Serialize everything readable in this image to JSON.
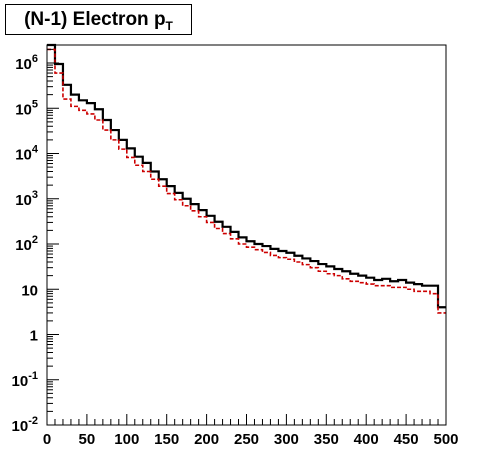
{
  "chart_data": {
    "type": "line",
    "title": "(N-1) Electron p",
    "title_subscript": "T",
    "xlabel": "",
    "ylabel": "",
    "xlim": [
      0,
      500
    ],
    "ylim": [
      0.01,
      2500000
    ],
    "yscale": "log",
    "grid": false,
    "x_ticks": [
      0,
      50,
      100,
      150,
      200,
      250,
      300,
      350,
      400,
      450,
      500
    ],
    "y_ticks": [
      {
        "value": 0.01,
        "base": "10",
        "exp": "-2"
      },
      {
        "value": 0.1,
        "base": "10",
        "exp": "-1"
      },
      {
        "value": 1,
        "base": "1",
        "exp": ""
      },
      {
        "value": 10,
        "base": "10",
        "exp": ""
      },
      {
        "value": 100,
        "base": "10",
        "exp": "2"
      },
      {
        "value": 1000,
        "base": "10",
        "exp": "3"
      },
      {
        "value": 10000,
        "base": "10",
        "exp": "4"
      },
      {
        "value": 100000,
        "base": "10",
        "exp": "5"
      },
      {
        "value": 1000000,
        "base": "10",
        "exp": "6"
      }
    ],
    "bin_edges": [
      0,
      10,
      20,
      30,
      40,
      50,
      60,
      70,
      80,
      90,
      100,
      110,
      120,
      130,
      140,
      150,
      160,
      170,
      180,
      190,
      200,
      210,
      220,
      230,
      240,
      250,
      260,
      270,
      280,
      290,
      300,
      310,
      320,
      330,
      340,
      350,
      360,
      370,
      380,
      390,
      400,
      410,
      420,
      430,
      440,
      450,
      460,
      470,
      480,
      490,
      500
    ],
    "series": [
      {
        "color": "#000000",
        "style": "solid",
        "values": [
          2500000,
          950000,
          330000,
          200000,
          150000,
          130000,
          95000,
          55000,
          33000,
          20000,
          13000,
          8500,
          6200,
          4000,
          2700,
          1900,
          1350,
          1000,
          760,
          560,
          420,
          310,
          240,
          185,
          140,
          115,
          100,
          90,
          78,
          70,
          64,
          55,
          48,
          42,
          36,
          32,
          28,
          25,
          22,
          20,
          18,
          16,
          17,
          15,
          16,
          14,
          13,
          12,
          12,
          4
        ]
      },
      {
        "color": "#cc0000",
        "style": "dashed",
        "values": [
          2000000,
          600000,
          160000,
          110000,
          90000,
          75000,
          55000,
          33000,
          20000,
          12500,
          8200,
          5500,
          4000,
          2700,
          1900,
          1300,
          950,
          700,
          540,
          400,
          300,
          220,
          170,
          130,
          100,
          85,
          75,
          65,
          56,
          50,
          46,
          40,
          35,
          30,
          25,
          22,
          20,
          17,
          15,
          14,
          13,
          12,
          12,
          11,
          11,
          10,
          9,
          9,
          8,
          3
        ]
      }
    ]
  }
}
